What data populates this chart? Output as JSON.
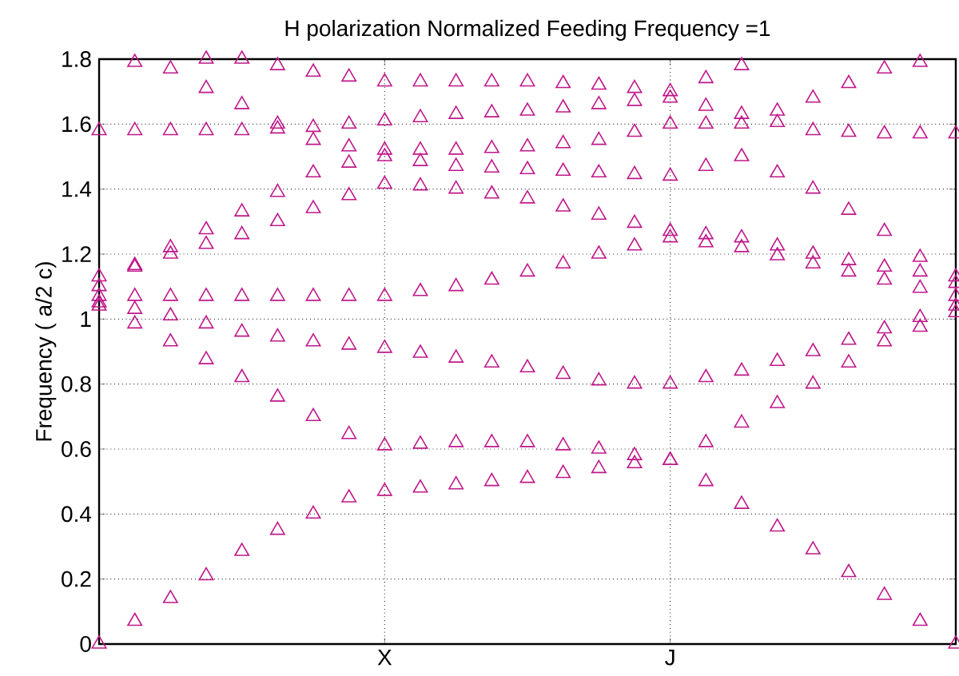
{
  "chart_data": {
    "type": "scatter",
    "title": "H polarization Normalized Feeding Frequency =1",
    "ylabel": "Frequency (  a/2  c)",
    "ylim": [
      0,
      1.8
    ],
    "yticks": [
      0,
      0.2,
      0.4,
      0.6,
      0.8,
      1,
      1.2,
      1.4,
      1.6,
      1.8
    ],
    "grid": true,
    "marker": "triangle",
    "categories": [
      null,
      null,
      null,
      null,
      null,
      null,
      null,
      null,
      "X",
      null,
      null,
      null,
      null,
      null,
      null,
      null,
      "J",
      null,
      null,
      null,
      null,
      null,
      null,
      null,
      null
    ],
    "series": [
      {
        "color": "#c0188a",
        "values": [
          0,
          0.07,
          0.14,
          0.21,
          0.285,
          0.35,
          0.4,
          0.45,
          0.47,
          0.48,
          0.49,
          0.5,
          0.51,
          0.525,
          0.54,
          0.555,
          0.565,
          0.5,
          0.43,
          0.36,
          0.29,
          0.22,
          0.15,
          0.07,
          0
        ]
      },
      {
        "color": "#c0188a",
        "values": [
          1.04,
          0.985,
          0.93,
          0.875,
          0.82,
          0.76,
          0.7,
          0.645,
          0.61,
          0.615,
          0.62,
          0.62,
          0.62,
          0.61,
          0.6,
          0.58,
          0.565,
          0.62,
          0.68,
          0.74,
          0.8,
          0.865,
          0.93,
          0.975,
          1.02
        ]
      },
      {
        "color": "#c0188a",
        "values": [
          1.05,
          1.03,
          1.01,
          0.985,
          0.96,
          0.945,
          0.93,
          0.92,
          0.91,
          0.895,
          0.88,
          0.865,
          0.85,
          0.83,
          0.81,
          0.8,
          0.8,
          0.82,
          0.84,
          0.87,
          0.9,
          0.935,
          0.97,
          1.005,
          1.04
        ]
      },
      {
        "color": "#c0188a",
        "values": [
          1.07,
          1.07,
          1.07,
          1.07,
          1.07,
          1.07,
          1.07,
          1.07,
          1.07,
          1.085,
          1.1,
          1.12,
          1.145,
          1.17,
          1.2,
          1.225,
          1.25,
          1.235,
          1.22,
          1.195,
          1.17,
          1.145,
          1.12,
          1.095,
          1.07
        ]
      },
      {
        "color": "#c0188a",
        "values": [
          1.13,
          1.165,
          1.2,
          1.23,
          1.26,
          1.3,
          1.34,
          1.38,
          1.415,
          1.41,
          1.4,
          1.385,
          1.37,
          1.345,
          1.32,
          1.295,
          1.27,
          1.26,
          1.25,
          1.225,
          1.2,
          1.18,
          1.16,
          1.145,
          1.13
        ]
      },
      {
        "color": "#c0188a",
        "values": [
          1.1,
          1.16,
          1.22,
          1.275,
          1.33,
          1.39,
          1.45,
          1.48,
          1.5,
          1.485,
          1.47,
          1.465,
          1.46,
          1.455,
          1.45,
          1.445,
          1.44,
          1.47,
          1.5,
          1.45,
          1.4,
          1.335,
          1.27,
          1.19,
          1.11
        ]
      },
      {
        "color": "#c0188a",
        "values": [
          1.58,
          1.58,
          1.58,
          1.58,
          1.58,
          1.585,
          1.59,
          1.6,
          1.61,
          1.62,
          1.63,
          1.635,
          1.64,
          1.65,
          1.66,
          1.67,
          1.68,
          1.655,
          1.63,
          1.605,
          1.58,
          1.575,
          1.57,
          1.57,
          1.57
        ]
      },
      {
        "color": "#c0188a",
        "values": [
          null,
          1.79,
          1.77,
          1.71,
          1.66,
          1.6,
          1.55,
          1.53,
          1.52,
          1.52,
          1.52,
          1.525,
          1.53,
          1.54,
          1.55,
          1.575,
          1.6,
          1.6,
          1.6,
          1.64,
          1.68,
          1.725,
          1.77,
          1.79,
          null
        ]
      },
      {
        "color": "#c0188a",
        "values": [
          null,
          null,
          null,
          1.8,
          1.8,
          1.78,
          1.76,
          1.745,
          1.73,
          1.73,
          1.73,
          1.73,
          1.73,
          1.725,
          1.72,
          1.71,
          1.7,
          1.74,
          1.78,
          null,
          null,
          null,
          null,
          null,
          null
        ]
      }
    ]
  }
}
